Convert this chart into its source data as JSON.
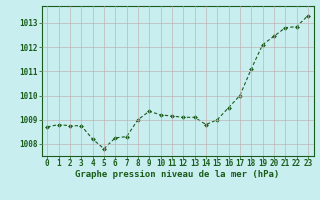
{
  "hours": [
    0,
    1,
    2,
    3,
    4,
    5,
    6,
    7,
    8,
    9,
    10,
    11,
    12,
    13,
    14,
    15,
    16,
    17,
    18,
    19,
    20,
    21,
    22,
    23
  ],
  "pressure": [
    1008.7,
    1008.8,
    1008.75,
    1008.75,
    1008.2,
    1007.8,
    1008.25,
    1008.3,
    1009.0,
    1009.35,
    1009.2,
    1009.15,
    1009.1,
    1009.1,
    1008.8,
    1009.0,
    1009.5,
    1010.0,
    1011.1,
    1012.1,
    1012.45,
    1012.8,
    1012.85,
    1013.3
  ],
  "ylim": [
    1007.5,
    1013.7
  ],
  "yticks": [
    1008,
    1009,
    1010,
    1011,
    1012,
    1013
  ],
  "xticks": [
    0,
    1,
    2,
    3,
    4,
    5,
    6,
    7,
    8,
    9,
    10,
    11,
    12,
    13,
    14,
    15,
    16,
    17,
    18,
    19,
    20,
    21,
    22,
    23
  ],
  "line_color": "#1a5c1a",
  "marker_color": "#1a5c1a",
  "bg_color_outer": "#c8eef0",
  "bg_color_inner": "#c8eef0",
  "grid_color": "#c0b0b0",
  "xlabel": "Graphe pression niveau de la mer (hPa)",
  "xlabel_color": "#1a5c1a",
  "tick_color": "#1a5c1a",
  "spine_color": "#1a5c1a",
  "xlabel_fontsize": 6.5,
  "tick_fontsize": 5.5,
  "ytick_fontsize": 5.5
}
